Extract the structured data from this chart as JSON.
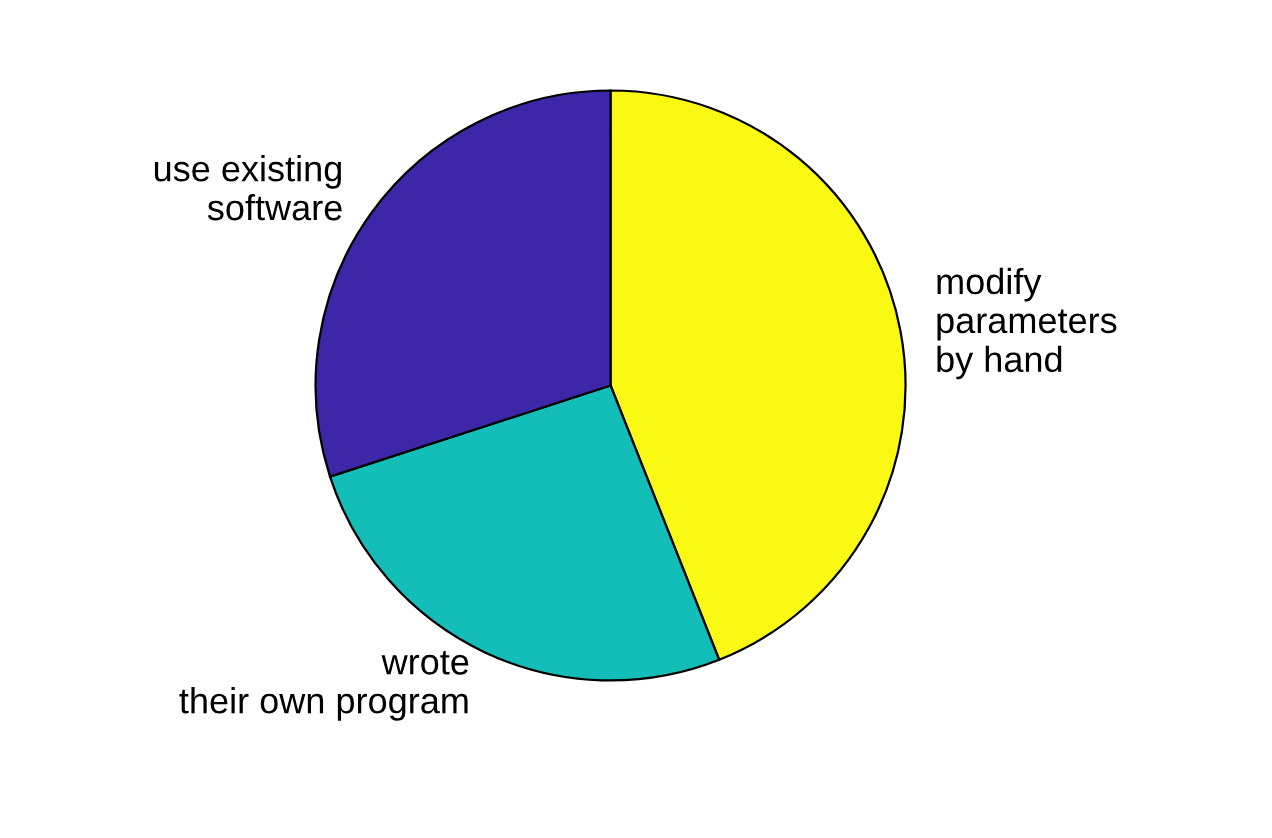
{
  "chart_data": {
    "type": "pie",
    "categories": [
      "modify\nparameters\nby hand",
      "wrote\ntheir own program",
      "use existing\nsoftware"
    ],
    "values": [
      44,
      26,
      30
    ],
    "colors": [
      "#f9f914",
      "#14beb8",
      "#3e26a8"
    ]
  }
}
